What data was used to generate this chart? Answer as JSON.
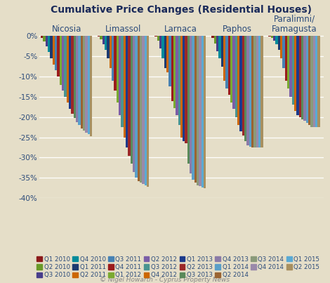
{
  "title": "Cumulative Price Changes (Residential Houses)",
  "footnote": "© Nigel Howarth - Cyprus Property News",
  "cities": [
    "Nicosia",
    "Limassol",
    "Larnaca",
    "Paphos",
    "Paralimni/\nFamagusta"
  ],
  "quarters": [
    "Q1 2010",
    "Q2 2010",
    "Q3 2010",
    "Q4 2010",
    "Q1 2011",
    "Q2 2011",
    "Q3 2011",
    "Q4 2011",
    "Q1 2012",
    "Q2 2012",
    "Q3 2012",
    "Q4 2012",
    "Q1 2013",
    "Q2 2013",
    "Q3 2013",
    "Q4 2013",
    "Q1 2014",
    "Q2 2014",
    "Q3 2014",
    "Q4 2014",
    "Q1 2015",
    "Q2 2015"
  ],
  "colors": [
    "#8B1A1A",
    "#6A9A28",
    "#483D8B",
    "#008B9A",
    "#1C3A70",
    "#CC6600",
    "#4682B4",
    "#9B1C1C",
    "#7AAA30",
    "#7B5EA7",
    "#4A9490",
    "#CC6600",
    "#1C3A8B",
    "#9B2828",
    "#5A8A5A",
    "#8B7BA8",
    "#5A9FC8",
    "#9A6432",
    "#8A9A7A",
    "#9A8AAA",
    "#5AAAD4",
    "#A89060"
  ],
  "data": {
    "Nicosia": [
      -0.4,
      -1.3,
      -2.5,
      -4.0,
      -5.5,
      -7.0,
      -8.5,
      -10.0,
      -12.0,
      -13.5,
      -15.0,
      -16.5,
      -18.0,
      -19.2,
      -20.2,
      -21.2,
      -22.0,
      -22.8,
      -23.3,
      -23.8,
      -24.3,
      -24.7
    ],
    "Limassol": [
      -0.2,
      -0.8,
      -2.0,
      -3.5,
      -5.5,
      -8.0,
      -11.0,
      -13.5,
      -16.5,
      -19.5,
      -22.5,
      -25.0,
      -27.5,
      -29.5,
      -31.5,
      -33.5,
      -35.0,
      -35.8,
      -36.2,
      -36.5,
      -36.8,
      -37.2
    ],
    "Larnaca": [
      -0.2,
      -1.2,
      -3.0,
      -5.5,
      -8.0,
      -9.0,
      -12.5,
      -16.0,
      -17.8,
      -19.5,
      -22.0,
      -25.0,
      -26.0,
      -26.5,
      -31.5,
      -34.0,
      -35.5,
      -36.2,
      -36.8,
      -37.0,
      -37.3,
      -37.5
    ],
    "Paphos": [
      -0.4,
      -1.8,
      -3.8,
      -5.5,
      -7.5,
      -11.0,
      -13.0,
      -14.5,
      -16.5,
      -18.0,
      -20.0,
      -22.0,
      -23.5,
      -24.5,
      -26.0,
      -27.0,
      -27.3,
      -27.5,
      -27.5,
      -27.5,
      -27.5,
      -27.5
    ],
    "Paralimni/\nFamagusta": [
      -0.1,
      -0.5,
      -1.2,
      -2.0,
      -3.5,
      -5.5,
      -8.0,
      -11.0,
      -13.0,
      -15.0,
      -17.0,
      -18.5,
      -19.5,
      -20.0,
      -20.5,
      -21.0,
      -21.5,
      -22.0,
      -22.5,
      -22.5,
      -22.5,
      -22.5
    ]
  },
  "ylim": [
    -40,
    0.5
  ],
  "yticks": [
    0,
    -5,
    -10,
    -15,
    -20,
    -25,
    -30,
    -35,
    -40
  ],
  "background_color": "#E5DEC8",
  "plot_bg_color": "#E5DEC8",
  "grid_color": "#FFFFFF",
  "title_color": "#1A2A5A",
  "axis_color": "#2A4A7A",
  "footnote_color": "#888888"
}
